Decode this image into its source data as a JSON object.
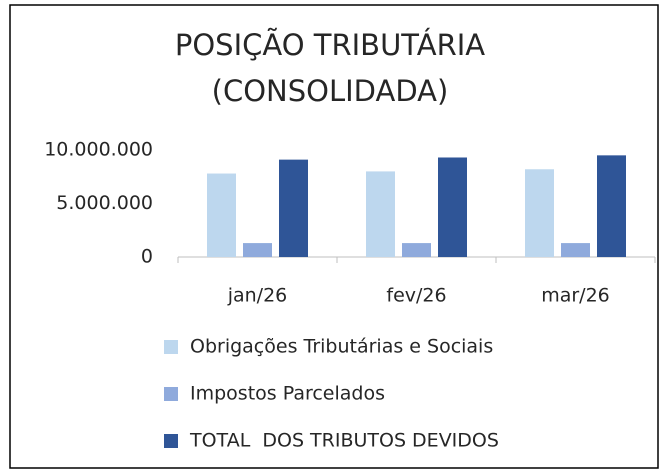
{
  "chart_data": {
    "type": "bar",
    "title": "POSIÇÃO TRIBUTÁRIA (CONSOLIDADA)",
    "categories": [
      "jan/26",
      "fev/26",
      "mar/26"
    ],
    "series": [
      {
        "name": "Obrigações Tributárias e Sociais",
        "color": "#bdd7ee",
        "values": [
          7800000,
          8000000,
          8200000
        ]
      },
      {
        "name": "Impostos Parcelados",
        "color": "#8faadc",
        "values": [
          1300000,
          1300000,
          1300000
        ]
      },
      {
        "name": "TOTAL  DOS TRIBUTOS DEVIDOS",
        "color": "#2f5597",
        "values": [
          9100000,
          9300000,
          9500000
        ]
      }
    ],
    "ylim": [
      0,
      10000000
    ],
    "yticks": [
      0,
      {
        "value": 5000000,
        "label": "5.000.000"
      },
      {
        "value": 10000000,
        "label": "10.000.000"
      }
    ],
    "grid": false,
    "legend": "bottom"
  }
}
